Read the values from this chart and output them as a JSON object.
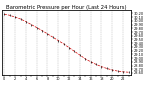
{
  "title": "Barometric Pressure per Hour (Last 24 Hours)",
  "x_hours": [
    0,
    1,
    2,
    3,
    4,
    5,
    6,
    7,
    8,
    9,
    10,
    11,
    12,
    13,
    14,
    15,
    16,
    17,
    18,
    19,
    20,
    21,
    22,
    23
  ],
  "pressure": [
    30.18,
    30.15,
    30.1,
    30.05,
    29.98,
    29.9,
    29.82,
    29.74,
    29.65,
    29.56,
    29.47,
    29.38,
    29.28,
    29.18,
    29.08,
    28.98,
    28.9,
    28.83,
    28.77,
    28.72,
    28.68,
    28.65,
    28.63,
    28.62
  ],
  "line_color": "#cc0000",
  "marker_color": "#000000",
  "bg_color": "#ffffff",
  "grid_color": "#999999",
  "title_fontsize": 3.8,
  "tick_fontsize": 2.5,
  "ylabel_fontsize": 2.5,
  "ylim": [
    28.55,
    30.28
  ],
  "yticks": [
    28.6,
    28.7,
    28.8,
    28.9,
    29.0,
    29.1,
    29.2,
    29.3,
    29.4,
    29.5,
    29.6,
    29.7,
    29.8,
    29.9,
    30.0,
    30.1,
    30.2
  ],
  "grid_xticks": [
    0,
    2,
    4,
    6,
    8,
    10,
    12,
    14,
    16,
    18,
    20,
    22
  ]
}
